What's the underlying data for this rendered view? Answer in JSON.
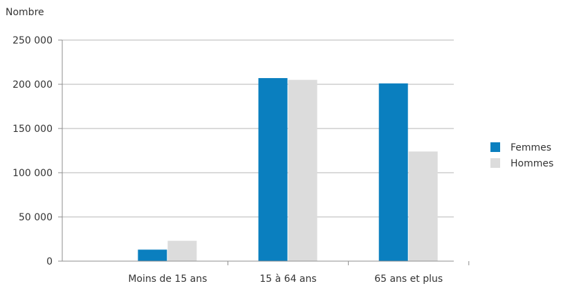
{
  "chart_data": {
    "type": "bar",
    "ylabel": "Nombre",
    "categories": [
      "Moins de 15 ans",
      "15 à 64 ans",
      "65 ans et plus"
    ],
    "series": [
      {
        "name": "Femmes",
        "values": [
          13000,
          207000,
          201000
        ],
        "color": "#0a7fbf"
      },
      {
        "name": "Hommes",
        "values": [
          23000,
          205000,
          124000
        ],
        "color": "#dcdcdc"
      }
    ],
    "ylim": [
      0,
      250000
    ],
    "yticks": [
      0,
      50000,
      100000,
      150000,
      200000,
      250000
    ],
    "ytick_labels": [
      "0",
      "50 000",
      "100 000",
      "150 000",
      "200 000",
      "250 000"
    ],
    "grid": true,
    "legend_position": "right"
  }
}
